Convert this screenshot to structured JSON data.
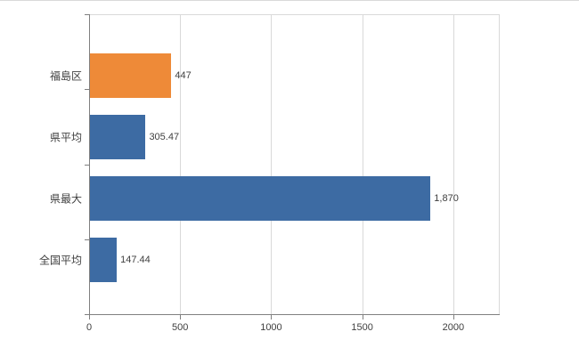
{
  "chart_data": {
    "type": "bar",
    "orientation": "horizontal",
    "title": "",
    "xlabel": "",
    "ylabel": "",
    "categories": [
      "福島区",
      "県平均",
      "県最大",
      "全国平均"
    ],
    "values": [
      447,
      305.47,
      1870,
      147.44
    ],
    "value_labels": [
      "447",
      "305.47",
      "1,870",
      "147.44"
    ],
    "bar_colors": [
      "#ee8a38",
      "#3d6ba3",
      "#3d6ba3",
      "#3d6ba3"
    ],
    "xlim": [
      0,
      2250
    ],
    "x_ticks": [
      0,
      500,
      1000,
      1500,
      2000
    ],
    "x_tick_labels": [
      "0",
      "500",
      "1000",
      "1500",
      "2000"
    ],
    "grid": "vertical",
    "legend": "none"
  },
  "colors": {
    "bar_blue": "#3d6ba3",
    "bar_orange": "#ee8a38",
    "gridline": "#d9d9d9",
    "axis": "#808080",
    "text": "#404040",
    "background": "#ffffff"
  }
}
